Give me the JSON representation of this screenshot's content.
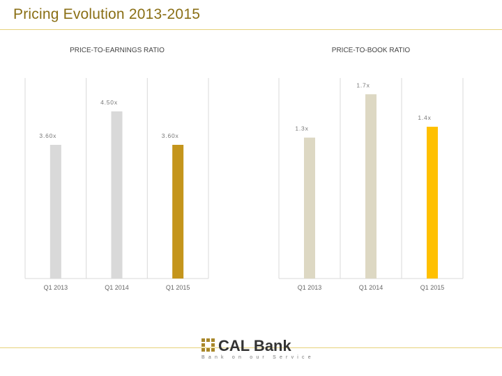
{
  "page": {
    "title": "Pricing Evolution 2013-2015"
  },
  "logo": {
    "name": "CAL Bank",
    "tagline": "Bank on our Service"
  },
  "colors": {
    "accent": "#8a6f15",
    "rule": "#e6d27a",
    "grid": "#d9d9d9"
  },
  "chart_data": [
    {
      "type": "bar",
      "title": "PRICE-TO-EARNINGS RATIO",
      "categories": [
        "Q1 2013",
        "Q1 2014",
        "Q1 2015"
      ],
      "values": [
        3.6,
        4.5,
        3.6
      ],
      "labels": [
        "3.60x",
        "4.50x",
        "3.60x"
      ],
      "bar_colors": [
        "#d9d9d9",
        "#d9d9d9",
        "#c4951c"
      ],
      "ylim": [
        0,
        5.4
      ],
      "xlabel": "",
      "ylabel": "",
      "grid": true,
      "legend": "none"
    },
    {
      "type": "bar",
      "title": "PRICE-TO-BOOK RATIO",
      "categories": [
        "Q1 2013",
        "Q1 2014",
        "Q1 2015"
      ],
      "values": [
        1.3,
        1.7,
        1.4
      ],
      "labels": [
        "1.3x",
        "1.7x",
        "1.4x"
      ],
      "bar_colors": [
        "#ddd8c3",
        "#ddd8c3",
        "#ffc000"
      ],
      "ylim": [
        0,
        1.85
      ],
      "xlabel": "",
      "ylabel": "",
      "grid": true,
      "legend": "none"
    }
  ]
}
